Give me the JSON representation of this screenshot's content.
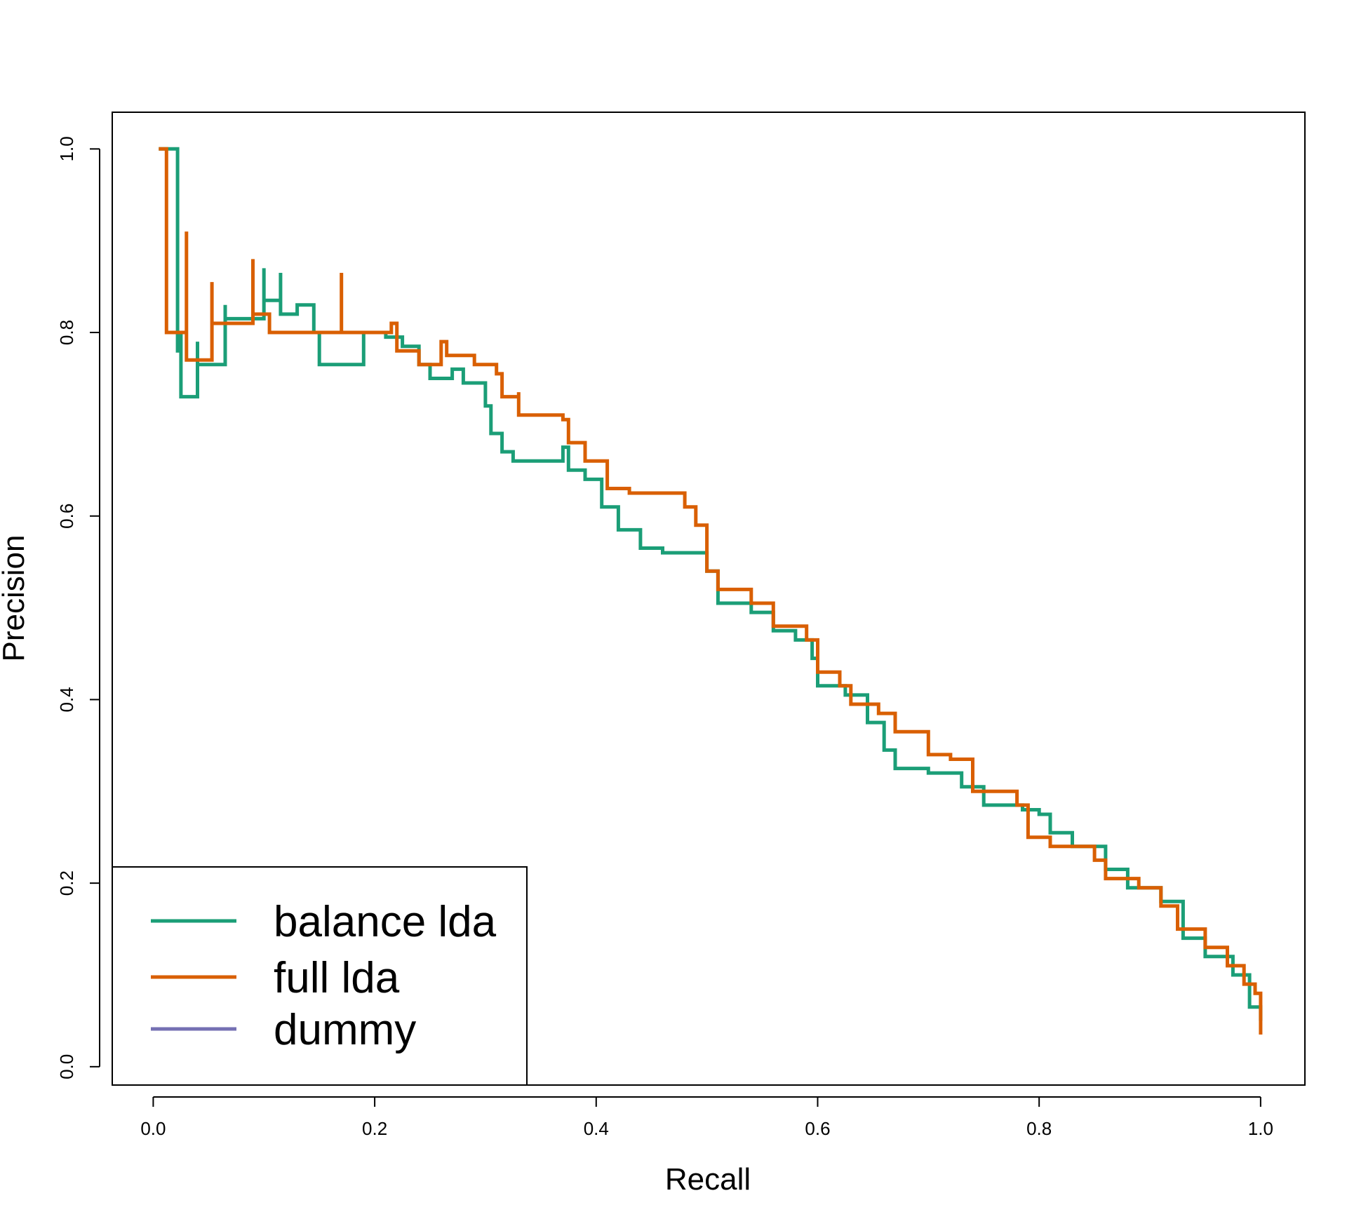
{
  "chart_data": {
    "type": "line",
    "title": "",
    "xlabel": "Recall",
    "ylabel": "Precision",
    "xlim": [
      -0.037,
      1.04
    ],
    "ylim": [
      -0.02,
      1.04
    ],
    "x_ticks": [
      0.0,
      0.2,
      0.4,
      0.6,
      0.8,
      1.0
    ],
    "x_tick_labels": [
      "0.0",
      "0.2",
      "0.4",
      "0.6",
      "0.8",
      "1.0"
    ],
    "y_ticks": [
      0.0,
      0.2,
      0.4,
      0.6,
      0.8,
      1.0
    ],
    "y_tick_labels": [
      "0.0",
      "0.2",
      "0.4",
      "0.6",
      "0.8",
      "1.0"
    ],
    "grid": false,
    "legend_position": "bottom-left",
    "series": [
      {
        "name": "balance lda",
        "color": "#1b9e77",
        "step": "pre",
        "points": [
          [
            0.005,
            1.0
          ],
          [
            0.022,
            1.0
          ],
          [
            0.022,
            0.78
          ],
          [
            0.025,
            0.8
          ],
          [
            0.025,
            0.73
          ],
          [
            0.04,
            0.79
          ],
          [
            0.04,
            0.765
          ],
          [
            0.065,
            0.83
          ],
          [
            0.065,
            0.815
          ],
          [
            0.1,
            0.87
          ],
          [
            0.1,
            0.835
          ],
          [
            0.115,
            0.865
          ],
          [
            0.115,
            0.82
          ],
          [
            0.13,
            0.83
          ],
          [
            0.145,
            0.8
          ],
          [
            0.15,
            0.765
          ],
          [
            0.19,
            0.8
          ],
          [
            0.21,
            0.795
          ],
          [
            0.225,
            0.785
          ],
          [
            0.24,
            0.765
          ],
          [
            0.25,
            0.75
          ],
          [
            0.27,
            0.76
          ],
          [
            0.28,
            0.745
          ],
          [
            0.3,
            0.72
          ],
          [
            0.305,
            0.69
          ],
          [
            0.315,
            0.67
          ],
          [
            0.325,
            0.66
          ],
          [
            0.37,
            0.675
          ],
          [
            0.375,
            0.65
          ],
          [
            0.39,
            0.64
          ],
          [
            0.405,
            0.61
          ],
          [
            0.42,
            0.585
          ],
          [
            0.44,
            0.565
          ],
          [
            0.46,
            0.56
          ],
          [
            0.49,
            0.56
          ],
          [
            0.5,
            0.54
          ],
          [
            0.51,
            0.505
          ],
          [
            0.54,
            0.495
          ],
          [
            0.56,
            0.475
          ],
          [
            0.58,
            0.465
          ],
          [
            0.595,
            0.445
          ],
          [
            0.6,
            0.415
          ],
          [
            0.625,
            0.405
          ],
          [
            0.645,
            0.375
          ],
          [
            0.66,
            0.345
          ],
          [
            0.67,
            0.325
          ],
          [
            0.7,
            0.32
          ],
          [
            0.73,
            0.305
          ],
          [
            0.75,
            0.285
          ],
          [
            0.785,
            0.28
          ],
          [
            0.8,
            0.275
          ],
          [
            0.81,
            0.255
          ],
          [
            0.83,
            0.24
          ],
          [
            0.86,
            0.215
          ],
          [
            0.88,
            0.195
          ],
          [
            0.91,
            0.18
          ],
          [
            0.93,
            0.14
          ],
          [
            0.95,
            0.12
          ],
          [
            0.975,
            0.1
          ],
          [
            0.99,
            0.065
          ],
          [
            1.0,
            0.05
          ]
        ]
      },
      {
        "name": "full lda",
        "color": "#d95f02",
        "step": "pre",
        "points": [
          [
            0.005,
            1.0
          ],
          [
            0.012,
            1.0
          ],
          [
            0.012,
            0.8
          ],
          [
            0.03,
            0.91
          ],
          [
            0.03,
            0.77
          ],
          [
            0.053,
            0.855
          ],
          [
            0.053,
            0.81
          ],
          [
            0.09,
            0.88
          ],
          [
            0.09,
            0.82
          ],
          [
            0.105,
            0.81
          ],
          [
            0.105,
            0.8
          ],
          [
            0.17,
            0.865
          ],
          [
            0.17,
            0.8
          ],
          [
            0.215,
            0.81
          ],
          [
            0.22,
            0.78
          ],
          [
            0.24,
            0.765
          ],
          [
            0.26,
            0.79
          ],
          [
            0.265,
            0.775
          ],
          [
            0.29,
            0.765
          ],
          [
            0.31,
            0.755
          ],
          [
            0.315,
            0.73
          ],
          [
            0.33,
            0.735
          ],
          [
            0.33,
            0.71
          ],
          [
            0.37,
            0.705
          ],
          [
            0.375,
            0.68
          ],
          [
            0.39,
            0.66
          ],
          [
            0.41,
            0.63
          ],
          [
            0.43,
            0.625
          ],
          [
            0.48,
            0.61
          ],
          [
            0.49,
            0.59
          ],
          [
            0.5,
            0.54
          ],
          [
            0.51,
            0.52
          ],
          [
            0.54,
            0.505
          ],
          [
            0.56,
            0.48
          ],
          [
            0.59,
            0.465
          ],
          [
            0.6,
            0.43
          ],
          [
            0.62,
            0.415
          ],
          [
            0.63,
            0.395
          ],
          [
            0.655,
            0.385
          ],
          [
            0.67,
            0.365
          ],
          [
            0.7,
            0.355
          ],
          [
            0.7,
            0.34
          ],
          [
            0.72,
            0.335
          ],
          [
            0.74,
            0.3
          ],
          [
            0.78,
            0.285
          ],
          [
            0.79,
            0.25
          ],
          [
            0.81,
            0.24
          ],
          [
            0.85,
            0.225
          ],
          [
            0.86,
            0.205
          ],
          [
            0.89,
            0.195
          ],
          [
            0.91,
            0.175
          ],
          [
            0.925,
            0.15
          ],
          [
            0.95,
            0.13
          ],
          [
            0.97,
            0.11
          ],
          [
            0.985,
            0.09
          ],
          [
            0.995,
            0.08
          ],
          [
            1.0,
            0.035
          ]
        ]
      },
      {
        "name": "dummy",
        "color": "#7570b3",
        "step": "pre",
        "points": []
      }
    ]
  }
}
